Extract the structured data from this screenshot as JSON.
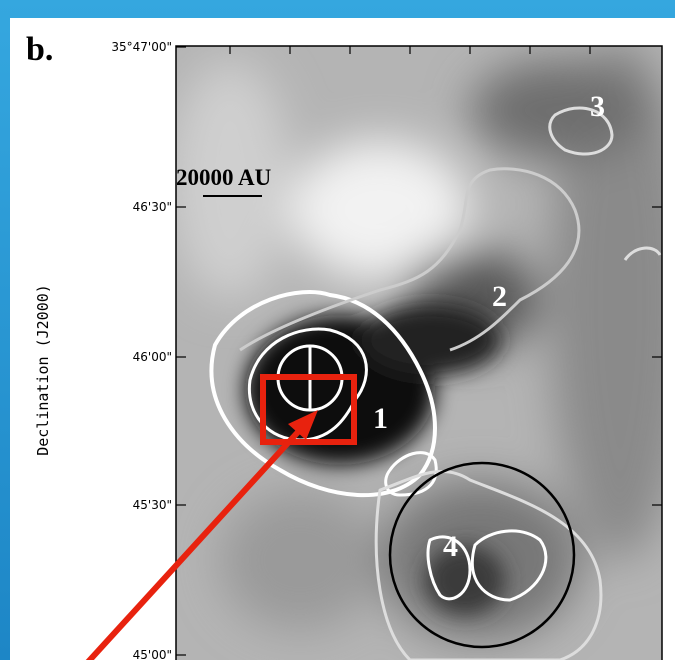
{
  "figure": {
    "panel_label": "b.",
    "y_tick_labels": [
      "35°47'00\"",
      "46'30\"",
      "46'00\"",
      "45'30\"",
      "45'00\""
    ],
    "y_axis_label": "Declination (J2000)",
    "scale_bar": "20000 AU",
    "source_labels": [
      "1",
      "2",
      "3",
      "4"
    ]
  }
}
